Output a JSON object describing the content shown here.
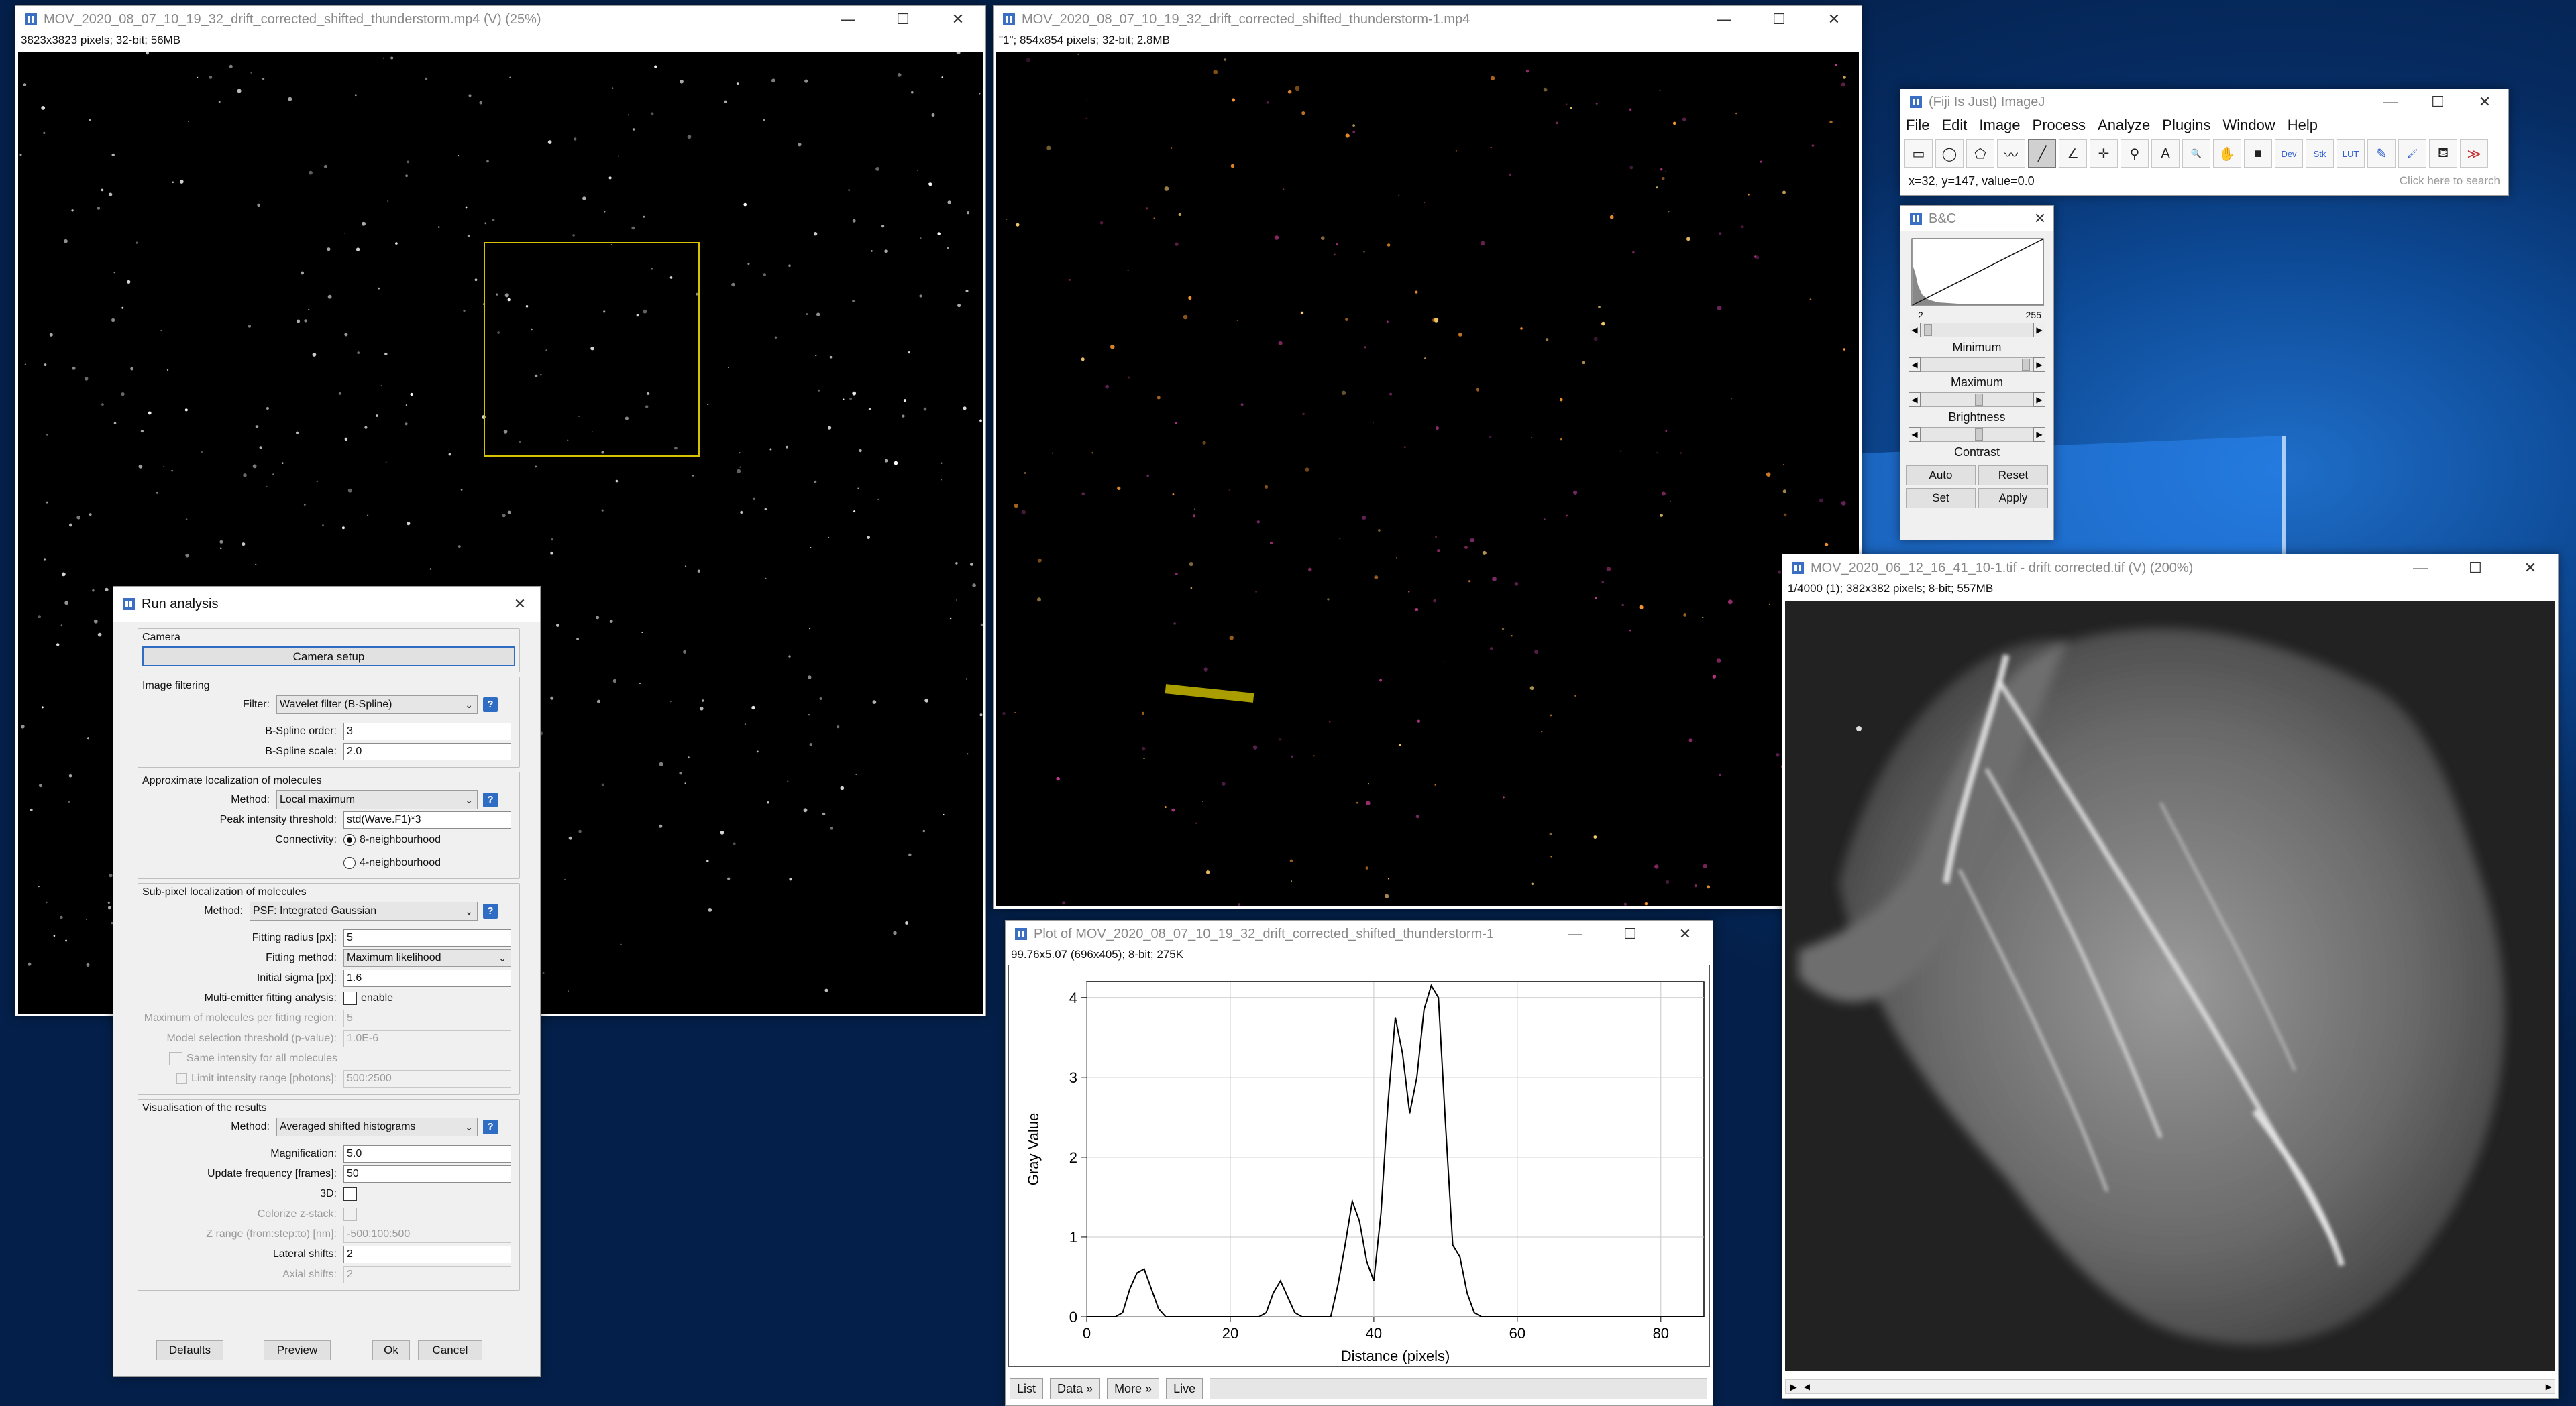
{
  "desktop": {
    "background": "#0a3a7d",
    "accent": "#2f8cff"
  },
  "win_main": {
    "title": "MOV_2020_08_07_10_19_32_drift_corrected_shifted_thunderstorm.mp4 (V) (25%)",
    "info": "3823x3823 pixels; 32-bit; 56MB"
  },
  "win_crop": {
    "title": "MOV_2020_08_07_10_19_32_drift_corrected_shifted_thunderstorm-1.mp4",
    "info": "\"1\"; 854x854 pixels; 32-bit; 2.8MB"
  },
  "win_tif": {
    "title": "MOV_2020_06_12_16_41_10-1.tif - drift corrected.tif (V) (200%)",
    "info": "1/4000 (1); 382x382 pixels; 8-bit; 557MB"
  },
  "imagej": {
    "title": "(Fiji Is Just) ImageJ",
    "menu": [
      "File",
      "Edit",
      "Image",
      "Process",
      "Analyze",
      "Plugins",
      "Window",
      "Help"
    ],
    "tools": [
      {
        "name": "rectangle-tool-icon",
        "glyph": "▭"
      },
      {
        "name": "oval-tool-icon",
        "glyph": "◯"
      },
      {
        "name": "polygon-tool-icon",
        "glyph": "⬠"
      },
      {
        "name": "freehand-tool-icon",
        "glyph": "〰"
      },
      {
        "name": "line-tool-icon",
        "glyph": "╱"
      },
      {
        "name": "angle-tool-icon",
        "glyph": "∠"
      },
      {
        "name": "point-tool-icon",
        "glyph": "✛"
      },
      {
        "name": "wand-tool-icon",
        "glyph": "⚲"
      },
      {
        "name": "text-tool-icon",
        "glyph": "A"
      },
      {
        "name": "zoom-tool-icon",
        "glyph": "🔍"
      },
      {
        "name": "hand-tool-icon",
        "glyph": "✋"
      },
      {
        "name": "color-picker-icon",
        "glyph": "■"
      },
      {
        "name": "dev-tool-icon",
        "glyph": "Dev"
      },
      {
        "name": "stk-tool-icon",
        "glyph": "Stk"
      },
      {
        "name": "lut-tool-icon",
        "glyph": "LUT"
      },
      {
        "name": "pencil-tool-icon",
        "glyph": "✎"
      },
      {
        "name": "brush-tool-icon",
        "glyph": "🖌"
      },
      {
        "name": "flood-fill-icon",
        "glyph": "⛾"
      },
      {
        "name": "more-tools-icon",
        "glyph": "≫"
      }
    ],
    "status": "x=32, y=147, value=0.0",
    "search_hint": "Click here to search"
  },
  "bc": {
    "title": "B&C",
    "hist_min": "2",
    "hist_max": "255",
    "labels": {
      "minimum": "Minimum",
      "maximum": "Maximum",
      "brightness": "Brightness",
      "contrast": "Contrast"
    },
    "buttons": {
      "auto": "Auto",
      "reset": "Reset",
      "set": "Set",
      "apply": "Apply"
    }
  },
  "run_analysis": {
    "title": "Run analysis",
    "camera": {
      "group": "Camera",
      "setup_btn": "Camera setup"
    },
    "filtering": {
      "group": "Image filtering",
      "filter_label": "Filter:",
      "filter_value": "Wavelet filter (B-Spline)",
      "order_label": "B-Spline order:",
      "order_value": "3",
      "scale_label": "B-Spline scale:",
      "scale_value": "2.0"
    },
    "approx": {
      "group": "Approximate localization of molecules",
      "method_label": "Method:",
      "method_value": "Local maximum",
      "thr_label": "Peak intensity threshold:",
      "thr_value": "std(Wave.F1)*3",
      "conn_label": "Connectivity:",
      "conn_opt1": "8-neighbourhood",
      "conn_opt2": "4-neighbourhood"
    },
    "subpixel": {
      "group": "Sub-pixel localization of molecules",
      "method_label": "Method:",
      "method_value": "PSF: Integrated Gaussian",
      "radius_label": "Fitting radius [px]:",
      "radius_value": "5",
      "fitmethod_label": "Fitting method:",
      "fitmethod_value": "Maximum likelihood",
      "sigma_label": "Initial sigma [px]:",
      "sigma_value": "1.6",
      "multi_label": "Multi-emitter fitting analysis:",
      "multi_value": "enable",
      "maxmol_label": "Maximum of molecules per fitting region:",
      "maxmol_value": "5",
      "pval_label": "Model selection threshold (p-value):",
      "pval_value": "1.0E-6",
      "same_int": "Same intensity for all molecules",
      "limit_label": "Limit intensity range [photons]:",
      "limit_value": "500:2500"
    },
    "visual": {
      "group": "Visualisation of the results",
      "method_label": "Method:",
      "method_value": "Averaged shifted histograms",
      "mag_label": "Magnification:",
      "mag_value": "5.0",
      "upd_label": "Update frequency [frames]:",
      "upd_value": "50",
      "d3_label": "3D:",
      "colorize_label": "Colorize z-stack:",
      "zrange_label": "Z range (from:step:to) [nm]:",
      "zrange_value": "-500:100:500",
      "lat_label": "Lateral shifts:",
      "lat_value": "2",
      "axial_label": "Axial shifts:",
      "axial_value": "2"
    },
    "buttons": {
      "defaults": "Defaults",
      "preview": "Preview",
      "ok": "Ok",
      "cancel": "Cancel"
    }
  },
  "plot_win": {
    "title": "Plot of MOV_2020_08_07_10_19_32_drift_corrected_shifted_thunderstorm-1",
    "info": "99.76x5.07  (696x405); 8-bit; 275K",
    "buttons": {
      "list": "List",
      "data": "Data »",
      "more": "More »",
      "live": "Live"
    }
  },
  "chart_data": {
    "type": "line",
    "xlabel": "Distance (pixels)",
    "ylabel": "Gray Value",
    "xlim": [
      0,
      86
    ],
    "ylim": [
      0,
      4.2
    ],
    "xticks": [
      0,
      20,
      40,
      60,
      80
    ],
    "yticks": [
      0,
      1,
      2,
      3,
      4
    ],
    "grid": true,
    "x": [
      0,
      2,
      4,
      5,
      6,
      7,
      8,
      9,
      10,
      11,
      12,
      24,
      25,
      26,
      27,
      28,
      29,
      30,
      34,
      35,
      36,
      37,
      38,
      39,
      40,
      41,
      42,
      43,
      44,
      45,
      46,
      47,
      48,
      49,
      50,
      51,
      52,
      53,
      54,
      55,
      60,
      70,
      80,
      86
    ],
    "y": [
      0,
      0,
      0,
      0.05,
      0.35,
      0.55,
      0.6,
      0.35,
      0.1,
      0,
      0,
      0,
      0.05,
      0.3,
      0.45,
      0.25,
      0.05,
      0,
      0,
      0.4,
      0.9,
      1.45,
      1.2,
      0.7,
      0.45,
      1.3,
      2.7,
      3.75,
      3.3,
      2.55,
      3.0,
      3.85,
      4.15,
      4.0,
      2.4,
      0.9,
      0.75,
      0.3,
      0.05,
      0,
      0,
      0,
      0,
      0
    ]
  }
}
